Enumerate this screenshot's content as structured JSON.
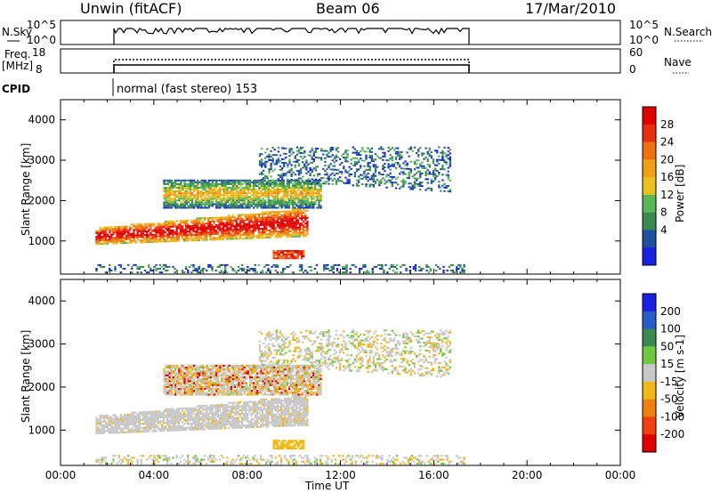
{
  "header": {
    "station": "Unwin (fitACF)",
    "beam": "Beam 06",
    "date": "17/Mar/2010"
  },
  "top_panels": {
    "nsky_label": "N.Sky",
    "nsky_ticks": [
      "10^5",
      "10^0"
    ],
    "nsearch_label": "N.Search",
    "freq_label_1": "Freq.",
    "freq_label_2": "[MHz]",
    "freq_ticks": [
      "18",
      "8"
    ],
    "nave_label": "Nave",
    "nave_ticks": [
      "60",
      "0"
    ],
    "cpid_label": "CPID",
    "cpid_value": "normal (fast stereo) 153"
  },
  "chart_data": [
    {
      "type": "heatmap",
      "title": "",
      "xlabel": "",
      "ylabel": "Slant Range [km]",
      "xlim": [
        "00:00",
        "00:00"
      ],
      "ylim": [
        180,
        4500
      ],
      "yticks": [
        "1000",
        "2000",
        "3000",
        "4000"
      ],
      "colorbar": {
        "label": "Power [dB]",
        "ticks": [
          "4",
          "8",
          "12",
          "16",
          "20",
          "24",
          "28"
        ],
        "colors": [
          "#1a22e0",
          "#2050a0",
          "#3a8a50",
          "#58b858",
          "#e8c020",
          "#f0a018",
          "#f07010",
          "#e83010",
          "#e00000"
        ]
      },
      "regions": [
        {
          "feature": "main echo band",
          "t_start_h": 1.5,
          "t_end_h": 10.6,
          "range_low_km": 900,
          "range_high_km": 1650,
          "power_db": "12-28"
        },
        {
          "feature": "upper band",
          "t_start_h": 4.4,
          "t_end_h": 11.2,
          "range_low_km": 1800,
          "range_high_km": 2500,
          "power_db": "4-16"
        },
        {
          "feature": "scattered high-range echoes",
          "t_start_h": 8.5,
          "t_end_h": 16.7,
          "range_low_km": 2200,
          "range_high_km": 3300,
          "power_db": "4-12"
        },
        {
          "feature": "low-range patch",
          "t_start_h": 9.1,
          "t_end_h": 10.4,
          "range_low_km": 550,
          "range_high_km": 750,
          "power_db": "16-28"
        },
        {
          "feature": "near-range ground clutter",
          "t_start_h": 1.5,
          "t_end_h": 17.3,
          "range_low_km": 200,
          "range_high_km": 420,
          "power_db": "4-20"
        }
      ]
    },
    {
      "type": "heatmap",
      "title": "",
      "xlabel": "Time UT",
      "ylabel": "Slant Range [km]",
      "xticks": [
        "00:00",
        "04:00",
        "08:00",
        "12:00",
        "16:00",
        "20:00",
        "00:00"
      ],
      "ylim": [
        180,
        4500
      ],
      "yticks": [
        "1000",
        "2000",
        "3000",
        "4000"
      ],
      "colorbar": {
        "label": "Velocity [m s-1]",
        "ticks": [
          "200",
          "100",
          "50",
          "15",
          "-15",
          "-50",
          "-100",
          "-200"
        ],
        "colors": [
          "#1a22e0",
          "#2a5cc8",
          "#3a8a50",
          "#70c840",
          "#c8c8c8",
          "#f0b818",
          "#f08010",
          "#f04010",
          "#e00000"
        ]
      },
      "regions": [
        {
          "feature": "main echo band (ground scatter)",
          "t_start_h": 1.5,
          "t_end_h": 10.6,
          "range_low_km": 900,
          "range_high_km": 1650,
          "velocity": "-15 to 15"
        },
        {
          "feature": "upper band",
          "t_start_h": 4.4,
          "t_end_h": 11.2,
          "range_low_km": 1800,
          "range_high_km": 2500,
          "velocity": "-200 to 15"
        },
        {
          "feature": "scattered high-range echoes",
          "t_start_h": 8.5,
          "t_end_h": 16.7,
          "range_low_km": 2200,
          "range_high_km": 3300,
          "velocity": "-50 to 15"
        },
        {
          "feature": "low-range patch",
          "t_start_h": 9.1,
          "t_end_h": 10.4,
          "range_low_km": 550,
          "range_high_km": 750,
          "velocity": "-50 to -15"
        },
        {
          "feature": "near-range clutter",
          "t_start_h": 1.5,
          "t_end_h": 17.3,
          "range_low_km": 200,
          "range_high_km": 420,
          "velocity": "-50 to 15"
        }
      ]
    }
  ]
}
